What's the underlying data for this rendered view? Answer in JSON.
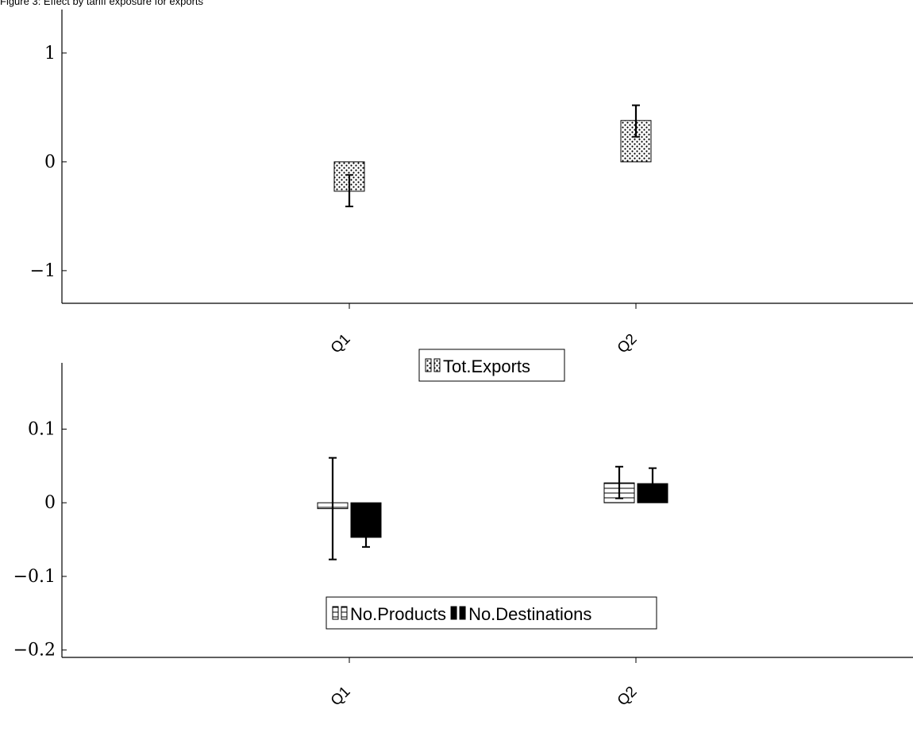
{
  "caption": "Figure 3: Effect by tariff exposure for exports",
  "chart_data": [
    {
      "type": "bar",
      "categories": [
        "Q1",
        "Q2"
      ],
      "ylim": [
        -1.3,
        1.4
      ],
      "yticks": [
        {
          "value": -1,
          "label": "−1"
        },
        {
          "value": 0,
          "label": "0"
        },
        {
          "value": 1,
          "label": "1"
        }
      ],
      "series": [
        {
          "name": "Tot.Exports",
          "fill": "dots",
          "values": [
            -0.27,
            0.38
          ],
          "ci_low": [
            -0.41,
            0.23
          ],
          "ci_high": [
            -0.12,
            0.52
          ]
        }
      ],
      "legend_position": "bottom-center",
      "grid": false
    },
    {
      "type": "bar",
      "categories": [
        "Q1",
        "Q2"
      ],
      "ylim": [
        -0.21,
        0.19
      ],
      "yticks": [
        {
          "value": -0.2,
          "label": "−0.2"
        },
        {
          "value": -0.1,
          "label": "−0.1"
        },
        {
          "value": 0,
          "label": "0"
        },
        {
          "value": 0.1,
          "label": "0.1"
        }
      ],
      "series": [
        {
          "name": "No.Products",
          "fill": "hlines",
          "values": [
            -0.008,
            0.027
          ],
          "ci_low": [
            -0.077,
            0.006
          ],
          "ci_high": [
            0.061,
            0.049
          ]
        },
        {
          "name": "No.Destinations",
          "fill": "solid",
          "values": [
            -0.047,
            0.026
          ],
          "ci_low": [
            -0.06,
            0.005
          ],
          "ci_high": [
            -0.034,
            0.047
          ]
        }
      ],
      "legend_position": "bottom-center",
      "grid": false
    }
  ]
}
